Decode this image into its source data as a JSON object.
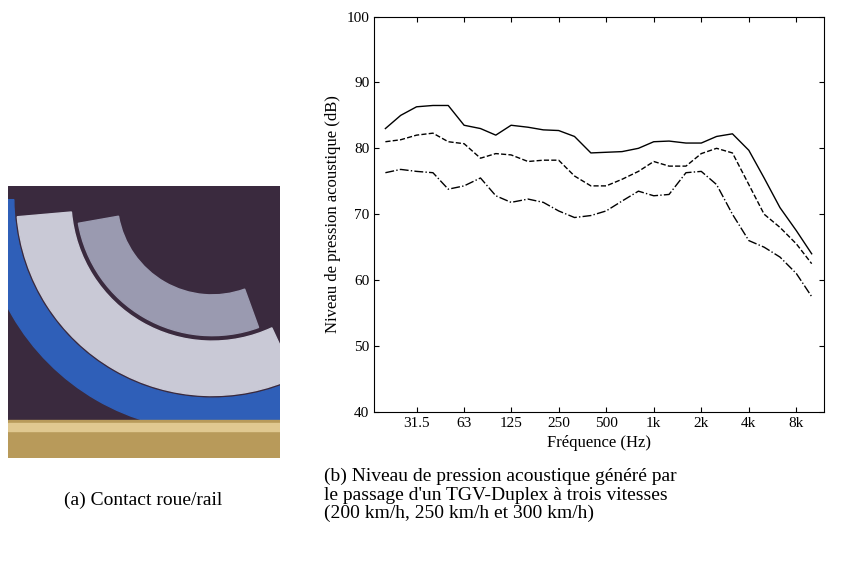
{
  "chart_data": {
    "type": "line",
    "x_label": "Fréquence (Hz)",
    "y_label": "Niveau de pression acoustique (dB)",
    "caption": "(b) Niveau de pression acoustique généré par\nle passage d'un TGV-Duplex à trois vitesses\n(200 km/h, 250 km/h et 300 km/h)",
    "log": "x",
    "grid": false,
    "x": [
      20,
      25,
      31.5,
      40,
      50,
      63,
      80,
      100,
      125,
      160,
      200,
      250,
      315,
      400,
      500,
      630,
      800,
      1000,
      1250,
      1600,
      2000,
      2500,
      3150,
      4000,
      5000,
      6300,
      8000,
      10000
    ],
    "series": [
      {
        "color": "#000000",
        "line_style": "solid",
        "values": [
          83,
          85,
          86.3,
          86.5,
          86.5,
          83.5,
          83,
          82,
          83.5,
          83.2,
          82.8,
          82.7,
          81.8,
          79.3,
          79.4,
          79.5,
          80,
          81,
          81.1,
          80.8,
          80.8,
          81.8,
          82.2,
          79.7,
          75.5,
          71,
          67.5,
          64
        ]
      },
      {
        "color": "#000000",
        "line_style": "dashed",
        "values": [
          81,
          81.3,
          82,
          82.3,
          81,
          80.7,
          78.5,
          79.2,
          79,
          78,
          78.2,
          78.2,
          75.8,
          74.3,
          74.3,
          75.3,
          76.5,
          78,
          77.3,
          77.3,
          79.2,
          80,
          79.3,
          74.5,
          70,
          68,
          65.5,
          62.5
        ]
      },
      {
        "color": "#000000",
        "line_style": "dashdot",
        "values": [
          76.3,
          76.8,
          76.5,
          76.3,
          73.8,
          74.3,
          75.5,
          72.8,
          71.8,
          72.3,
          71.8,
          70.5,
          69.5,
          69.8,
          70.5,
          72,
          73.5,
          72.8,
          73,
          76.3,
          76.5,
          74.5,
          70,
          66,
          65,
          63.5,
          61,
          57.5
        ]
      }
    ],
    "xlim": [
      17,
      12000
    ],
    "xticks": [
      31.5,
      63,
      125,
      250,
      500,
      {
        "value": 1000,
        "label": "1k"
      },
      {
        "value": 2000,
        "label": "2k"
      },
      {
        "value": 4000,
        "label": "4k"
      },
      {
        "value": 8000,
        "label": "8k"
      }
    ],
    "ylim": [
      40,
      100
    ],
    "yticks": [
      40,
      50,
      60,
      70,
      80,
      90,
      100
    ]
  },
  "photo": {
    "caption": "(a) Contact roue/rail"
  }
}
